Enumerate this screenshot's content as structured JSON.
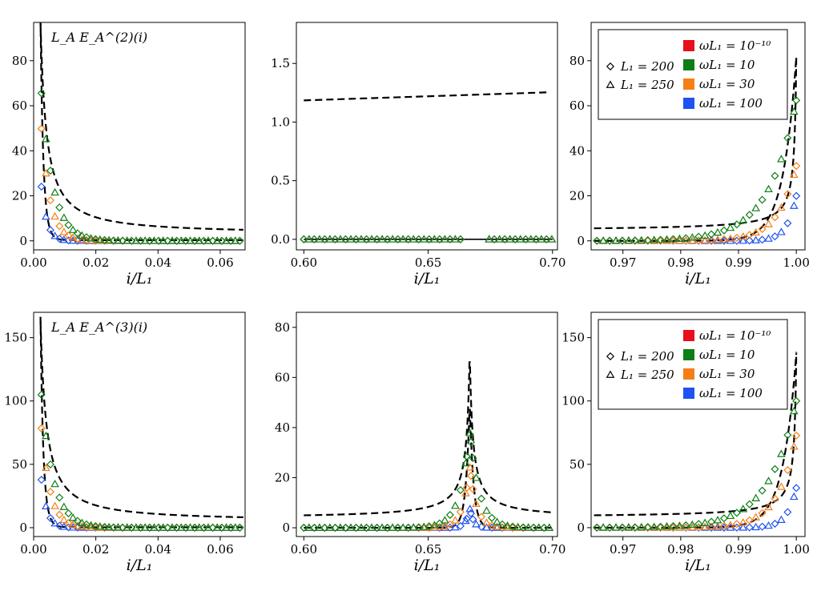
{
  "figure": {
    "legend_markers": [
      {
        "marker": "diamond",
        "label": "L₁ = 200"
      },
      {
        "marker": "triangle",
        "label": "L₁ = 250"
      }
    ],
    "legend_colors": [
      {
        "color": "#e8101b",
        "label": "ωL₁ = 10⁻¹⁰"
      },
      {
        "color": "#0e7d16",
        "label": "ωL₁ = 10"
      },
      {
        "color": "#f57f17",
        "label": "ωL₁ = 30"
      },
      {
        "color": "#1f52f0",
        "label": "ωL₁ = 100"
      }
    ],
    "colors": {
      "omega_1e-10": "#e8101b",
      "omega_10": "#0e7d16",
      "omega_30": "#f57f17",
      "omega_100": "#1f52f0",
      "theory": "#000000"
    }
  },
  "chart_data": [
    {
      "type": "scatter",
      "panel": "top-left",
      "title": "L_A E_A^(2)(i)",
      "xlabel": "i/L₁",
      "ylabel": "",
      "xlim": [
        0,
        0.068
      ],
      "ylim": [
        -4,
        97
      ],
      "xticks": [
        0.0,
        0.02,
        0.04,
        0.06
      ],
      "xtick_labels": [
        "0.00",
        "0.02",
        "0.04",
        "0.06"
      ],
      "yticks": [
        0,
        20,
        40,
        60,
        80
      ],
      "ytick_labels": [
        "0",
        "20",
        "40",
        "60",
        "80"
      ],
      "legend": false,
      "kind": "left",
      "peak": 83,
      "base": 3,
      "series_amp": [
        1.0,
        0.79,
        0.6,
        0.29
      ]
    },
    {
      "type": "scatter",
      "panel": "top-middle",
      "title": "",
      "xlabel": "i/L₁",
      "ylabel": "",
      "xlim": [
        0.597,
        0.702
      ],
      "ylim": [
        -0.09,
        1.85
      ],
      "xticks": [
        0.6,
        0.65,
        0.7
      ],
      "xtick_labels": [
        "0.60",
        "0.65",
        "0.70"
      ],
      "yticks": [
        0.0,
        0.5,
        1.0,
        1.5
      ],
      "ytick_labels": [
        "0.0",
        "0.5",
        "1.0",
        "1.5"
      ],
      "legend": false,
      "kind": "gap"
    },
    {
      "type": "scatter",
      "panel": "top-right",
      "title": "",
      "xlabel": "i/L₁",
      "ylabel": "",
      "xlim": [
        0.9645,
        1.0015
      ],
      "ylim": [
        -4,
        97
      ],
      "xticks": [
        0.97,
        0.98,
        0.99,
        1.0
      ],
      "xtick_labels": [
        "0.97",
        "0.98",
        "0.99",
        "1.00"
      ],
      "yticks": [
        0,
        20,
        40,
        60,
        80
      ],
      "ytick_labels": [
        "0",
        "20",
        "40",
        "60",
        "80"
      ],
      "legend": true,
      "kind": "right",
      "peak": 83,
      "base": 4.5,
      "series_amp": [
        1.0,
        0.8,
        0.44,
        0.29
      ]
    },
    {
      "type": "scatter",
      "panel": "bottom-left",
      "title": "L_A E_A^(3)(i)",
      "xlabel": "i/L₁",
      "ylabel": "",
      "xlim": [
        0,
        0.068
      ],
      "ylim": [
        -7,
        170
      ],
      "xticks": [
        0.0,
        0.02,
        0.04,
        0.06
      ],
      "xtick_labels": [
        "0.00",
        "0.02",
        "0.04",
        "0.06"
      ],
      "yticks": [
        0,
        50,
        100,
        150
      ],
      "ytick_labels": [
        "0",
        "50",
        "100",
        "150"
      ],
      "legend": false,
      "kind": "left",
      "peak": 140,
      "base": 5,
      "series_amp": [
        1.0,
        0.75,
        0.56,
        0.27
      ]
    },
    {
      "type": "scatter",
      "panel": "bottom-middle",
      "title": "",
      "xlabel": "i/L₁",
      "ylabel": "",
      "xlim": [
        0.597,
        0.702
      ],
      "ylim": [
        -3.5,
        86
      ],
      "xticks": [
        0.6,
        0.65,
        0.7
      ],
      "xtick_labels": [
        "0.60",
        "0.65",
        "0.70"
      ],
      "yticks": [
        0,
        20,
        40,
        60,
        80
      ],
      "ytick_labels": [
        "0",
        "20",
        "40",
        "60",
        "80"
      ],
      "legend": false,
      "kind": "peak",
      "peak": 66,
      "base": 3.5,
      "series_amp": [
        1.0,
        0.8,
        0.59,
        0.27
      ]
    },
    {
      "type": "scatter",
      "panel": "bottom-right",
      "title": "",
      "xlabel": "i/L₁",
      "ylabel": "",
      "xlim": [
        0.9645,
        1.0015
      ],
      "ylim": [
        -7,
        170
      ],
      "xticks": [
        0.97,
        0.98,
        0.99,
        1.0
      ],
      "xtick_labels": [
        "0.97",
        "0.98",
        "0.99",
        "1.00"
      ],
      "yticks": [
        0,
        50,
        100,
        150
      ],
      "ytick_labels": [
        "0",
        "50",
        "100",
        "150"
      ],
      "legend": true,
      "kind": "right",
      "peak": 140,
      "base": 8,
      "series_amp": [
        1.0,
        0.76,
        0.57,
        0.27
      ]
    }
  ]
}
